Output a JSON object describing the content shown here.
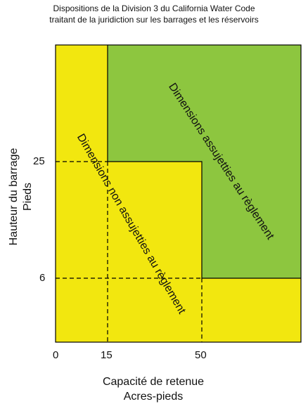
{
  "title": {
    "line1": "Dispositions de la Division 3 du California Water Code",
    "line2": "traitant de la juridiction sur les barrages et les réservoirs"
  },
  "y_axis": {
    "label_line1": "Hauteur du barrage",
    "label_line2": "Pieds",
    "ticks": [
      "25",
      "6"
    ]
  },
  "x_axis": {
    "label_line1": "Capacité de retenue",
    "label_line2": "Acres-pieds",
    "ticks": [
      "0",
      "15",
      "50"
    ]
  },
  "zones": {
    "regulated": {
      "label": "Dimensions assujetties au règlement",
      "color": "#8dc63f"
    },
    "non_regulated": {
      "label": "Dimensions non assujetties au règlement",
      "color": "#f2e70f"
    }
  },
  "colors": {
    "border": "#000000",
    "dashed": "#000000"
  }
}
